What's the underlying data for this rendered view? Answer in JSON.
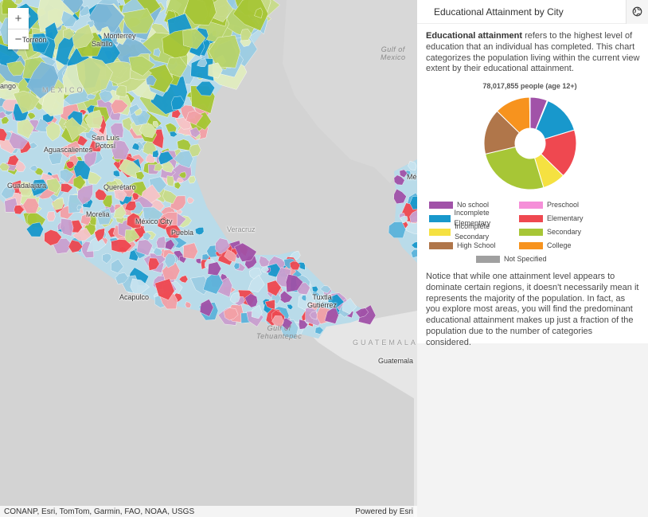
{
  "map": {
    "zoom_in": "+",
    "zoom_out": "−",
    "attribution_left": "CONANP, Esri, TomTom, Garmin, FAO, NOAA, USGS",
    "attribution_right": "Powered by Esri",
    "labels": {
      "torreon": "Torreón",
      "monterrey": "Monterrey",
      "saltillo": "Saltillo",
      "gulf": "Gulf of\nMexico",
      "durango": "ango",
      "mexico": "MÉXICO",
      "san_luis": "San Luis\nPotosí",
      "aguascalientes": "Aguascalientes",
      "guadalajara": "Guadalajara",
      "queretaro": "Querétaro",
      "morelia": "Morelia",
      "mexico_city": "México City",
      "puebla": "Puebla",
      "veracruz": "Veracruz",
      "me": "Mé",
      "acapulco": "Acapulco",
      "tuxtla": "Tuxtla\nGutiérrez",
      "tehuantepec": "Gulf of\nTehuantepec",
      "guatemala_country": "GUATEMALA",
      "guatemala_city": "Guatemala"
    }
  },
  "panel": {
    "title": "Educational Attainment by City",
    "collapse_icon": "globe-icon",
    "intro_bold": "Educational attainment",
    "intro_rest": " refers to the highest level of education that an individual has completed. This chart categorizes the population living within the current view extent by their educational attainment.",
    "people": "78,017,855 people (age 12+)",
    "outro": "Notice that while one attainment level appears to dominate certain regions, it doesn't necessarily mean it represents the majority of the population. In fact, as you explore most areas, you will find the predominant educational attainment makes up just a fraction of the population due to the number of categories considered."
  },
  "chart_data": {
    "type": "pie",
    "title": "78,017,855 people (age 12+)",
    "categories": [
      "No school",
      "Preschool",
      "Incomplete Elementary",
      "Elementary",
      "Incomplete Secondary",
      "Secondary",
      "High School",
      "College",
      "Not Specified"
    ],
    "values": [
      6,
      0.3,
      14,
      17,
      8,
      26,
      16,
      12.5,
      0.2
    ],
    "colors": [
      "#a152a8",
      "#f58fd8",
      "#1898cc",
      "#ef4850",
      "#f5e141",
      "#a7c636",
      "#b0764a",
      "#f7931e",
      "#a0a0a0"
    ],
    "legend_placement": "bottom",
    "donut": true
  }
}
